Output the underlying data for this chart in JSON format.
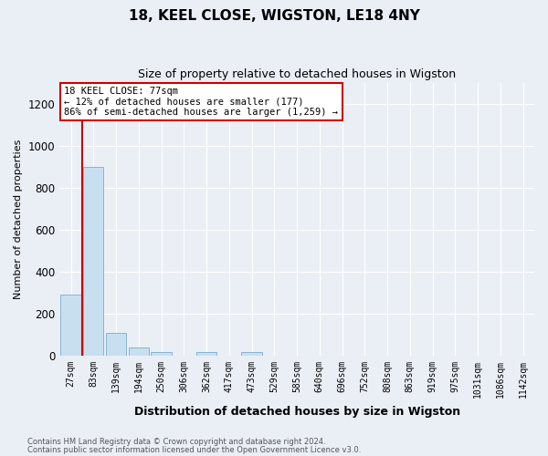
{
  "title1": "18, KEEL CLOSE, WIGSTON, LE18 4NY",
  "title2": "Size of property relative to detached houses in Wigston",
  "xlabel": "Distribution of detached houses by size in Wigston",
  "ylabel": "Number of detached properties",
  "categories": [
    "27sqm",
    "83sqm",
    "139sqm",
    "194sqm",
    "250sqm",
    "306sqm",
    "362sqm",
    "417sqm",
    "473sqm",
    "529sqm",
    "585sqm",
    "640sqm",
    "696sqm",
    "752sqm",
    "808sqm",
    "863sqm",
    "919sqm",
    "975sqm",
    "1031sqm",
    "1086sqm",
    "1142sqm"
  ],
  "values": [
    290,
    900,
    110,
    40,
    20,
    0,
    20,
    0,
    20,
    0,
    0,
    0,
    0,
    0,
    0,
    0,
    0,
    0,
    0,
    0,
    0
  ],
  "bar_color": "#c8dff0",
  "bar_edge_color": "#8ab4d0",
  "background_color": "#eaeff6",
  "grid_color": "#ffffff",
  "annotation_box_facecolor": "#ffffff",
  "annotation_box_edgecolor": "#cc0000",
  "red_line_color": "#cc0000",
  "red_line_x": 0.5,
  "ylim": [
    0,
    1300
  ],
  "yticks": [
    0,
    200,
    400,
    600,
    800,
    1000,
    1200
  ],
  "annotation_line1": "18 KEEL CLOSE: 77sqm",
  "annotation_line2": "← 12% of detached houses are smaller (177)",
  "annotation_line3": "86% of semi-detached houses are larger (1,259) →",
  "footer1": "Contains HM Land Registry data © Crown copyright and database right 2024.",
  "footer2": "Contains public sector information licensed under the Open Government Licence v3.0."
}
